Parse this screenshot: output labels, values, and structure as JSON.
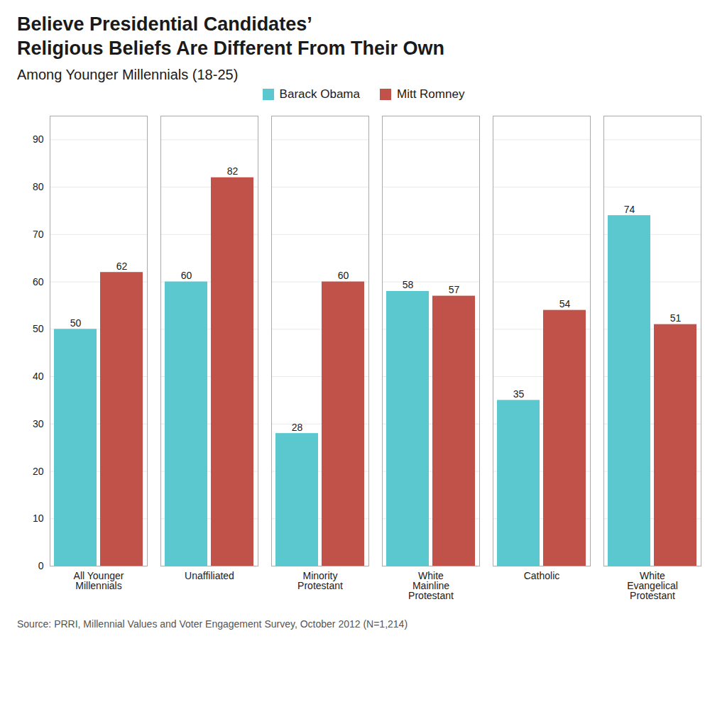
{
  "chart_data": {
    "type": "bar",
    "title": "Believe Presidential Candidates’\nReligious Beliefs Are Different From Their Own",
    "subtitle": "Among Younger Millennials (18-25)",
    "source": "Source: PRRI, Millennial Values and Voter Engagement Survey, October 2012 (N=1,214)",
    "categories": [
      "All Younger\nMillennials",
      "Unaffiliated",
      "Minority\nProtestant",
      "White\nMainline\nProtestant",
      "Catholic",
      "White\nEvangelical\nProtestant"
    ],
    "series": [
      {
        "name": "Barack Obama",
        "color": "#5BC8D0",
        "values": [
          50,
          60,
          28,
          58,
          35,
          74
        ]
      },
      {
        "name": "Mitt Romney",
        "color": "#C0524A",
        "values": [
          62,
          82,
          60,
          57,
          54,
          51
        ]
      }
    ],
    "ylim": [
      0,
      95
    ],
    "yticks": [
      0,
      10,
      20,
      30,
      40,
      50,
      60,
      70,
      80,
      90
    ],
    "grid": true,
    "legend": "top",
    "data_labels": true
  }
}
